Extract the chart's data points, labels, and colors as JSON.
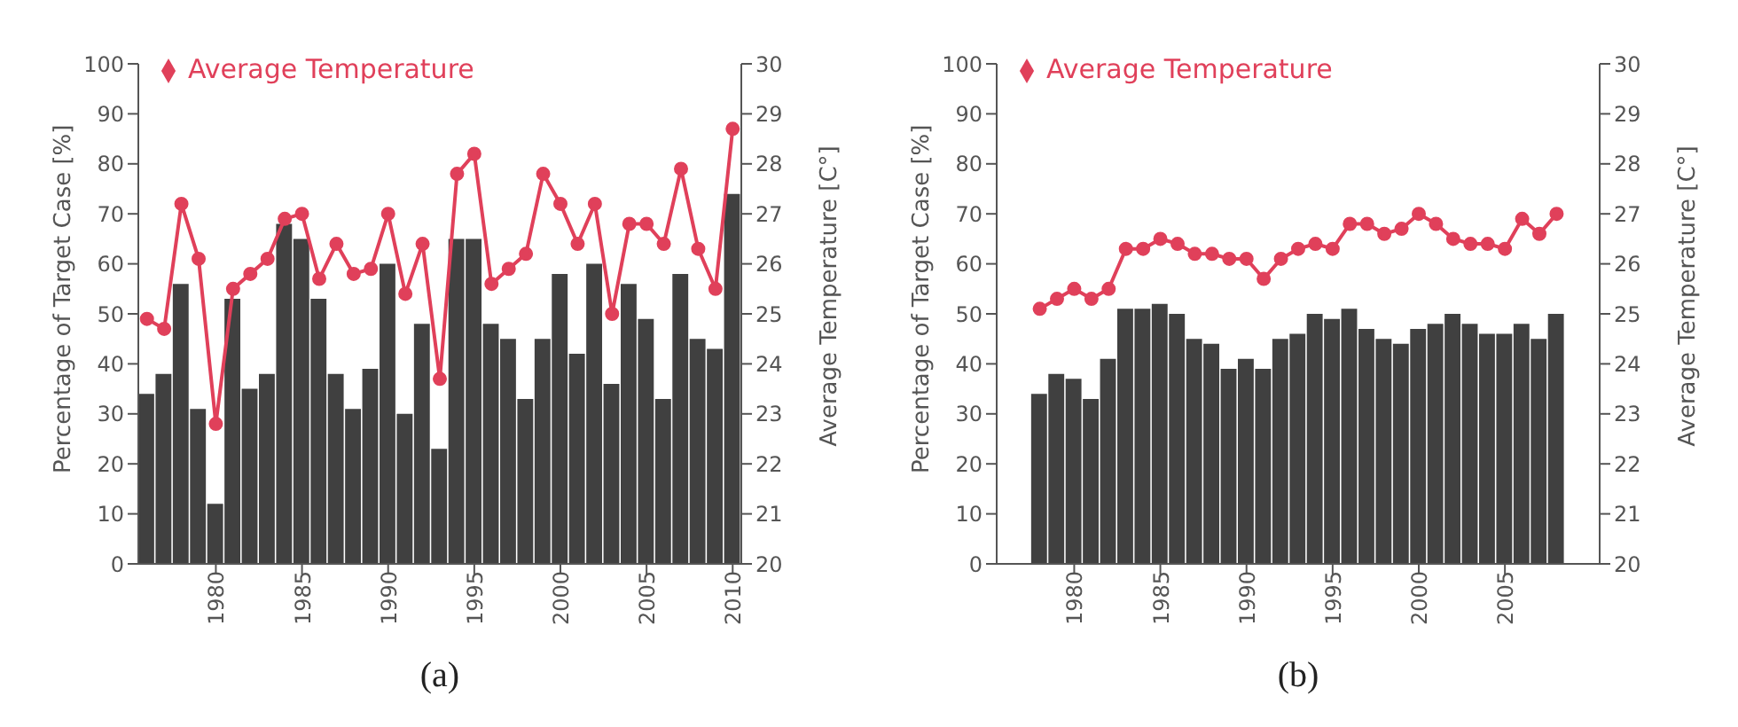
{
  "chart_data": [
    {
      "type": "bar",
      "title": "(a)",
      "ylabel": "Percentage of Target Case [%]",
      "y2label": "Average Temperature [C°]",
      "x": [
        1976,
        1977,
        1978,
        1979,
        1980,
        1981,
        1982,
        1983,
        1984,
        1985,
        1986,
        1987,
        1988,
        1989,
        1990,
        1991,
        1992,
        1993,
        1994,
        1995,
        1996,
        1997,
        1998,
        1999,
        2000,
        2001,
        2002,
        2003,
        2004,
        2005,
        2006,
        2007,
        2008,
        2009,
        2010
      ],
      "xlim": [
        1975.5,
        2010.5
      ],
      "xticks": [
        1980,
        1985,
        1990,
        1995,
        2000,
        2005,
        2010
      ],
      "ylim": [
        0,
        100
      ],
      "yticks": [
        0,
        10,
        20,
        30,
        40,
        50,
        60,
        70,
        80,
        90,
        100
      ],
      "y2lim": [
        20,
        30
      ],
      "y2ticks": [
        20,
        21,
        22,
        23,
        24,
        25,
        26,
        27,
        28,
        29,
        30
      ],
      "legend": "top left",
      "grid": false,
      "series": [
        {
          "color": "#404040",
          "values": [
            34,
            38,
            56,
            31,
            12,
            53,
            35,
            38,
            68,
            65,
            53,
            38,
            31,
            39,
            60,
            30,
            48,
            23,
            65,
            65,
            48,
            45,
            33,
            45,
            58,
            42,
            60,
            36,
            56,
            49,
            33,
            58,
            45,
            43,
            74
          ]
        },
        {
          "type": "line",
          "name": "Average Temperature",
          "axis": "y2",
          "color": "#e0405a",
          "marker": "circle",
          "values": [
            24.9,
            24.7,
            27.2,
            26.1,
            22.8,
            25.5,
            25.8,
            26.1,
            26.9,
            27.0,
            25.7,
            26.4,
            25.8,
            25.9,
            27.0,
            25.4,
            26.4,
            23.7,
            27.8,
            28.2,
            25.6,
            25.9,
            26.2,
            27.8,
            27.2,
            26.4,
            27.2,
            25.0,
            26.8,
            26.8,
            26.4,
            27.9,
            26.3,
            25.5,
            28.7
          ]
        }
      ]
    },
    {
      "type": "bar",
      "title": "(b)",
      "ylabel": "Percentage of Target Case [%]",
      "y2label": "Average Temperature [C°]",
      "x": [
        1978,
        1979,
        1980,
        1981,
        1982,
        1983,
        1984,
        1985,
        1986,
        1987,
        1988,
        1989,
        1990,
        1991,
        1992,
        1993,
        1994,
        1995,
        1996,
        1997,
        1998,
        1999,
        2000,
        2001,
        2002,
        2003,
        2004,
        2005,
        2006,
        2007,
        2008
      ],
      "xlim": [
        1975.5,
        2010.5
      ],
      "xticks": [
        1980,
        1985,
        1990,
        1995,
        2000,
        2005
      ],
      "ylim": [
        0,
        100
      ],
      "yticks": [
        0,
        10,
        20,
        30,
        40,
        50,
        60,
        70,
        80,
        90,
        100
      ],
      "y2lim": [
        20,
        30
      ],
      "y2ticks": [
        20,
        21,
        22,
        23,
        24,
        25,
        26,
        27,
        28,
        29,
        30
      ],
      "legend": "top left",
      "grid": false,
      "series": [
        {
          "color": "#404040",
          "values": [
            34,
            38,
            37,
            33,
            41,
            51,
            51,
            52,
            50,
            45,
            44,
            39,
            41,
            39,
            45,
            46,
            50,
            49,
            51,
            47,
            45,
            44,
            47,
            48,
            50,
            48,
            46,
            46,
            48,
            45,
            50
          ]
        },
        {
          "type": "line",
          "name": "Average Temperature",
          "axis": "y2",
          "color": "#e0405a",
          "marker": "circle",
          "values": [
            25.1,
            25.3,
            25.5,
            25.3,
            25.5,
            26.3,
            26.3,
            26.5,
            26.4,
            26.2,
            26.2,
            26.1,
            26.1,
            25.7,
            26.1,
            26.3,
            26.4,
            26.3,
            26.8,
            26.8,
            26.6,
            26.7,
            27.0,
            26.8,
            26.5,
            26.4,
            26.4,
            26.3,
            26.9,
            26.6,
            27.0
          ]
        }
      ]
    }
  ]
}
